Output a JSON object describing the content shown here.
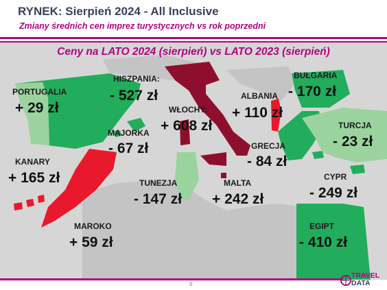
{
  "header": {
    "title": "RYNEK: Sierpień 2024 - All Inclusive",
    "subtitle": "Zmiany średnich cen imprez turystycznych vs rok poprzedni"
  },
  "map": {
    "title": "Ceny na LATO 2024 (sierpień) vs  LATO 2023 (sierpień)",
    "colors": {
      "sea": "#d6d6d6",
      "land": "#c4c4c4",
      "increase_strong": "#e8192c",
      "increase": "#8e0f2d",
      "decrease": "#21ad5c",
      "decrease_light": "#9bd39f"
    },
    "regions": [
      {
        "id": "portugalia",
        "label": "PORTUGALIA",
        "value": "+ 29 zł",
        "change": "increase"
      },
      {
        "id": "hiszpania",
        "label": "HISZPANIA:",
        "value": "- 527 zł",
        "change": "decrease"
      },
      {
        "id": "majorka",
        "label": "MAJORKA",
        "value": "- 67 zł",
        "change": "decrease"
      },
      {
        "id": "wlochy",
        "label": "WŁOCHY:",
        "value": "+ 608 zł",
        "change": "increase"
      },
      {
        "id": "albania",
        "label": "ALBANIA",
        "value": "+ 110 zł",
        "change": "increase"
      },
      {
        "id": "bulgaria",
        "label": "BUŁGARIA",
        "value": "- 170 zł",
        "change": "decrease"
      },
      {
        "id": "turcja",
        "label": "TURCJA",
        "value": "- 23 zł",
        "change": "decrease"
      },
      {
        "id": "grecja",
        "label": "GRECJA",
        "value": "- 84 zł",
        "change": "decrease"
      },
      {
        "id": "kanary",
        "label": "KANARY",
        "value": "+ 165 zł",
        "change": "increase"
      },
      {
        "id": "tunezja",
        "label": "TUNEZJA",
        "value": "- 147 zł",
        "change": "decrease"
      },
      {
        "id": "malta",
        "label": "MALTA",
        "value": "+ 242 zł",
        "change": "increase"
      },
      {
        "id": "cypr",
        "label": "CYPR",
        "value": "- 249 zł",
        "change": "decrease"
      },
      {
        "id": "maroko",
        "label": "MAROKO",
        "value": "+ 59 zł",
        "change": "increase"
      },
      {
        "id": "egipt",
        "label": "EGIPT",
        "value": "- 410 zł",
        "change": "decrease"
      }
    ]
  },
  "footer": {
    "page_number": "8",
    "logo_line1": "TRAVEL",
    "logo_line2": "DATA"
  }
}
